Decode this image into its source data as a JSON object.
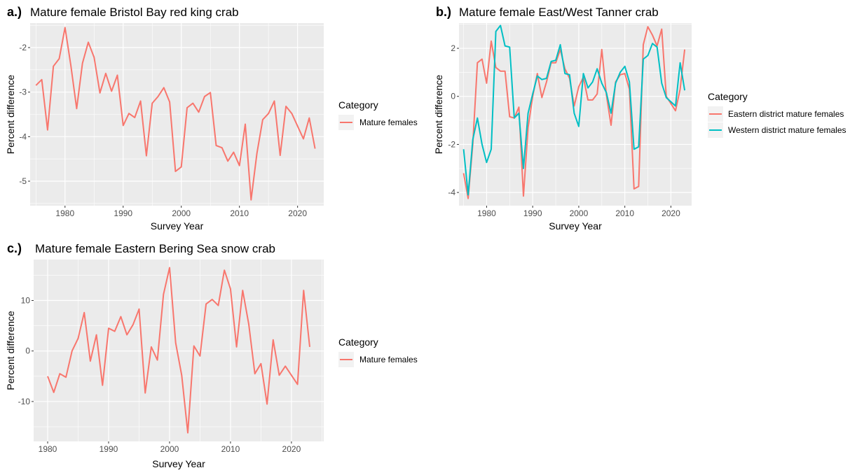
{
  "colors": {
    "panel_bg": "#EBEBEB",
    "grid": "#FFFFFF",
    "eastern": "#F8766D",
    "western": "#00BFC4"
  },
  "chart_data": [
    {
      "id": "a",
      "type": "line",
      "tag": "a.)",
      "title": "Mature female Bristol Bay red king crab",
      "xlabel": "Survey Year",
      "ylabel": "Percent difference",
      "xlim": [
        1974,
        2024.5
      ],
      "ylim": [
        -5.55,
        -1.45
      ],
      "xticks": [
        1980,
        1990,
        2000,
        2010,
        2020
      ],
      "yticks": [
        -5,
        -4,
        -3,
        -2
      ],
      "ytick_labels": [
        "-5",
        "-4",
        "-3",
        "-2"
      ],
      "grid": true,
      "legend_title": "Category",
      "legend_position": "right",
      "series": [
        {
          "name": "Mature females",
          "color": "#F8766D",
          "x": [
            1975,
            1976,
            1977,
            1978,
            1979,
            1980,
            1981,
            1982,
            1983,
            1984,
            1985,
            1986,
            1987,
            1988,
            1989,
            1990,
            1991,
            1992,
            1993,
            1994,
            1995,
            1996,
            1997,
            1998,
            1999,
            2000,
            2001,
            2002,
            2003,
            2004,
            2005,
            2006,
            2007,
            2008,
            2009,
            2010,
            2011,
            2012,
            2013,
            2014,
            2015,
            2016,
            2017,
            2018,
            2019,
            2021,
            2022,
            2023
          ],
          "y": [
            -2.85,
            -2.72,
            -3.85,
            -2.42,
            -2.25,
            -1.55,
            -2.4,
            -3.37,
            -2.35,
            -1.88,
            -2.22,
            -3.02,
            -2.58,
            -2.98,
            -2.62,
            -3.75,
            -3.48,
            -3.57,
            -3.2,
            -4.43,
            -3.25,
            -3.1,
            -2.9,
            -3.22,
            -4.78,
            -4.68,
            -3.35,
            -3.25,
            -3.45,
            -3.1,
            -3.01,
            -4.2,
            -4.25,
            -4.55,
            -4.35,
            -4.65,
            -3.72,
            -5.42,
            -4.38,
            -3.62,
            -3.48,
            -3.2,
            -4.42,
            -3.32,
            -3.48,
            -4.05,
            -3.58,
            -4.27
          ]
        }
      ]
    },
    {
      "id": "b",
      "type": "line",
      "tag": "b.)",
      "title": "Mature female East/West Tanner crab",
      "xlabel": "Survey Year",
      "ylabel": "Percent difference",
      "xlim": [
        1974,
        2024.5
      ],
      "ylim": [
        -4.55,
        3.05
      ],
      "xticks": [
        1980,
        1990,
        2000,
        2010,
        2020
      ],
      "yticks": [
        -4,
        -2,
        0,
        2
      ],
      "ytick_labels": [
        "-4",
        "-2",
        "0",
        "2"
      ],
      "grid": true,
      "legend_title": "Category",
      "legend_position": "right",
      "series": [
        {
          "name": "Eastern district mature females",
          "color": "#F8766D",
          "x": [
            1975,
            1976,
            1977,
            1978,
            1979,
            1980,
            1981,
            1982,
            1983,
            1984,
            1985,
            1986,
            1987,
            1988,
            1989,
            1990,
            1991,
            1992,
            1993,
            1994,
            1995,
            1996,
            1997,
            1998,
            1999,
            2000,
            2001,
            2002,
            2003,
            2004,
            2005,
            2006,
            2007,
            2008,
            2009,
            2010,
            2011,
            2012,
            2013,
            2014,
            2015,
            2016,
            2017,
            2018,
            2019,
            2021,
            2022,
            2023
          ],
          "y": [
            -3.2,
            -4.25,
            -2.0,
            1.4,
            1.55,
            0.55,
            2.3,
            1.2,
            1.05,
            1.05,
            -0.85,
            -0.9,
            -0.45,
            -4.15,
            -1.3,
            0.0,
            0.95,
            -0.05,
            0.6,
            1.4,
            1.4,
            1.95,
            1.15,
            0.75,
            -0.4,
            0.4,
            0.8,
            -0.15,
            -0.15,
            0.1,
            1.95,
            0.05,
            -1.2,
            0.6,
            0.9,
            0.95,
            0.3,
            -3.85,
            -3.75,
            2.15,
            2.9,
            2.55,
            2.1,
            2.8,
            0.0,
            -0.6,
            0.3,
            1.95
          ]
        },
        {
          "name": "Western district mature females",
          "color": "#00BFC4",
          "x": [
            1975,
            1976,
            1977,
            1978,
            1979,
            1980,
            1981,
            1982,
            1983,
            1984,
            1985,
            1986,
            1987,
            1988,
            1989,
            1990,
            1991,
            1992,
            1993,
            1994,
            1995,
            1996,
            1997,
            1998,
            1999,
            2000,
            2001,
            2002,
            2003,
            2004,
            2005,
            2006,
            2007,
            2008,
            2009,
            2010,
            2011,
            2012,
            2013,
            2014,
            2015,
            2016,
            2017,
            2018,
            2019,
            2021,
            2022,
            2023
          ],
          "y": [
            -2.2,
            -4.1,
            -1.8,
            -0.9,
            -2.0,
            -2.75,
            -2.2,
            2.7,
            2.95,
            2.1,
            2.05,
            -0.9,
            -0.7,
            -3.0,
            -0.7,
            0.1,
            0.85,
            0.7,
            0.75,
            1.45,
            1.5,
            2.15,
            0.95,
            0.9,
            -0.7,
            -1.25,
            0.95,
            0.35,
            0.6,
            1.15,
            0.55,
            0.15,
            -0.7,
            0.55,
            1.0,
            1.25,
            0.6,
            -2.2,
            -2.1,
            1.55,
            1.7,
            2.2,
            2.05,
            0.55,
            -0.05,
            -0.4,
            1.4,
            0.25
          ]
        }
      ]
    },
    {
      "id": "c",
      "type": "line",
      "tag": "c.)",
      "title": "Mature female Eastern Bering Sea snow crab",
      "xlabel": "Survey Year",
      "ylabel": "Percent difference",
      "xlim": [
        1977.7,
        2025.3
      ],
      "ylim": [
        -17.9,
        18.1
      ],
      "xticks": [
        1980,
        1990,
        2000,
        2010,
        2020
      ],
      "yticks": [
        -10,
        0,
        10
      ],
      "ytick_labels": [
        "-10",
        "0",
        "10"
      ],
      "grid": true,
      "legend_title": "Category",
      "legend_position": "right",
      "series": [
        {
          "name": "Mature females",
          "color": "#F8766D",
          "x": [
            1980,
            1981,
            1982,
            1983,
            1984,
            1985,
            1986,
            1987,
            1988,
            1989,
            1990,
            1991,
            1992,
            1993,
            1994,
            1995,
            1996,
            1997,
            1998,
            1999,
            2000,
            2001,
            2002,
            2003,
            2004,
            2005,
            2006,
            2007,
            2008,
            2009,
            2010,
            2011,
            2012,
            2013,
            2014,
            2015,
            2016,
            2017,
            2018,
            2019,
            2021,
            2022,
            2023
          ],
          "y": [
            -5.0,
            -8.2,
            -4.5,
            -5.2,
            0.0,
            2.5,
            7.6,
            -2.0,
            3.2,
            -6.8,
            4.5,
            3.9,
            6.8,
            3.2,
            5.2,
            8.3,
            -8.3,
            0.8,
            -1.8,
            11.2,
            16.5,
            1.6,
            -4.8,
            -16.2,
            1.0,
            -1.0,
            9.3,
            10.2,
            9.0,
            16.0,
            12.3,
            0.8,
            12.0,
            5.3,
            -4.5,
            -2.5,
            -10.5,
            2.2,
            -4.8,
            -3.0,
            -6.6,
            12.0,
            0.8
          ]
        }
      ]
    }
  ]
}
